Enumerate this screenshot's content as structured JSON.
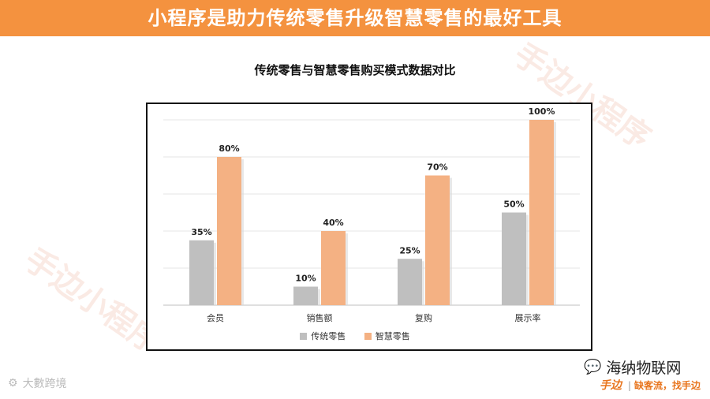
{
  "banner": {
    "title": "小程序是助力传统零售升级智慧零售的最好工具"
  },
  "watermark": {
    "text": "手边小程序"
  },
  "chart_data": {
    "type": "bar",
    "title": "传统零售与智慧零售购买模式数据对比",
    "categories": [
      "会员",
      "销售额",
      "复购",
      "展示率"
    ],
    "series": [
      {
        "name": "传统零售",
        "values": [
          35,
          10,
          25,
          50
        ],
        "labels": [
          "35%",
          "10%",
          "25%",
          "50%"
        ],
        "color": "#bfbfbf"
      },
      {
        "name": "智慧零售",
        "values": [
          80,
          40,
          70,
          100
        ],
        "labels": [
          "80%",
          "40%",
          "70%",
          "100%"
        ],
        "color": "#f4b183"
      }
    ],
    "ylim": [
      0,
      100
    ],
    "grid": true,
    "legend_position": "bottom"
  },
  "footer": {
    "wechat_name": "海纳物联网",
    "brand_logo": "手边",
    "brand_slogan": "缺客流，找手边",
    "corner_text": "大數跨境"
  }
}
